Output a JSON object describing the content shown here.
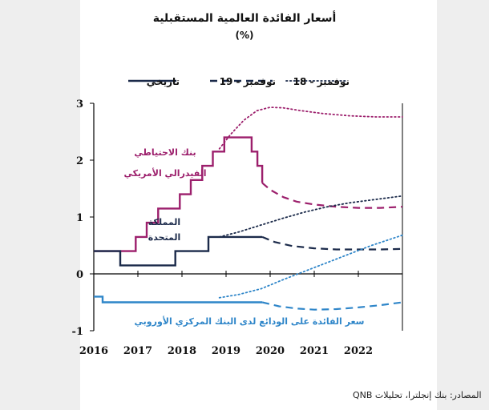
{
  "chart_data": {
    "type": "line",
    "title": "أسعار الفائدة العالمية المستقبلية",
    "subtitle": "(%)",
    "legend": {
      "placement": "top",
      "items": [
        {
          "label": "تاريخي",
          "style": "solid",
          "color": "#1b2a4a"
        },
        {
          "label": "نوفمبر - 19",
          "style": "dashed",
          "color": "#1b2a4a"
        },
        {
          "label": "نوفمبر - 18",
          "style": "dotted",
          "color": "#1b2a4a"
        }
      ]
    },
    "xlim": [
      2016,
      2023.0
    ],
    "ylim": [
      -1,
      3
    ],
    "x_ticks": [
      "2016",
      "2017",
      "2018",
      "2019",
      "2020",
      "2021",
      "2022"
    ],
    "y_ticks": [
      "3",
      "2",
      "1",
      "0",
      "-1"
    ],
    "grid": false,
    "source": "المصادر: بنك إنجلترا، تحليلات QNB",
    "colors": {
      "fed": "#9c1f6c",
      "uk": "#1b2a4a",
      "ecb": "#2f86c9"
    },
    "annotations": [
      {
        "id": "fed",
        "lines": [
          "بنك الاحتياطي",
          "الفيدرالي الأمريكي"
        ],
        "color": "#9c1f6c"
      },
      {
        "id": "uk",
        "lines": [
          "المملكة",
          "المتحدة"
        ],
        "color": "#1b2a4a"
      },
      {
        "id": "ecb",
        "lines": [
          "سعر الفائدة على الودائع لدى البنك المركزي الأوروبي"
        ],
        "color": "#2f86c9"
      }
    ],
    "series": [
      {
        "name": "بنك الاحتياطي الفيدرالي الأمريكي",
        "kind": "historical",
        "color": "#9c1f6c",
        "step": true,
        "x": [
          2016.0,
          2016.95,
          2017.2,
          2017.46,
          2017.95,
          2018.2,
          2018.46,
          2018.7,
          2018.96,
          2019.58,
          2019.71,
          2019.82
        ],
        "y": [
          0.4,
          0.65,
          0.9,
          1.15,
          1.4,
          1.65,
          1.9,
          2.15,
          2.4,
          2.15,
          1.9,
          1.6
        ]
      },
      {
        "name": "بنك الاحتياطي الفيدرالي الأمريكي",
        "kind": "forecast_nov19",
        "color": "#9c1f6c",
        "x": [
          2019.82,
          2020.0,
          2020.3,
          2020.6,
          2021.0,
          2021.5,
          2022.0,
          2022.5,
          2023.0
        ],
        "y": [
          1.6,
          1.48,
          1.35,
          1.27,
          1.22,
          1.18,
          1.16,
          1.16,
          1.18
        ]
      },
      {
        "name": "بنك الاحتياطي الفيدرالي الأمريكي",
        "kind": "forecast_nov18",
        "color": "#9c1f6c",
        "x": [
          2018.85,
          2019.1,
          2019.4,
          2019.7,
          2020.0,
          2020.3,
          2020.7,
          2021.2,
          2021.8,
          2022.4,
          2023.0
        ],
        "y": [
          2.2,
          2.45,
          2.7,
          2.87,
          2.93,
          2.92,
          2.87,
          2.82,
          2.78,
          2.76,
          2.76
        ]
      },
      {
        "name": "المملكة المتحدة",
        "kind": "historical",
        "color": "#1b2a4a",
        "step": true,
        "x": [
          2016.0,
          2016.6,
          2017.85,
          2018.6,
          2019.82
        ],
        "y": [
          0.4,
          0.15,
          0.4,
          0.65,
          0.65
        ]
      },
      {
        "name": "المملكة المتحدة",
        "kind": "forecast_nov19",
        "color": "#1b2a4a",
        "x": [
          2019.82,
          2020.1,
          2020.5,
          2021.0,
          2021.5,
          2022.0,
          2022.5,
          2023.0
        ],
        "y": [
          0.65,
          0.56,
          0.49,
          0.45,
          0.43,
          0.43,
          0.43,
          0.44
        ]
      },
      {
        "name": "المملكة المتحدة",
        "kind": "forecast_nov18",
        "color": "#1b2a4a",
        "x": [
          2018.85,
          2019.3,
          2019.8,
          2020.3,
          2020.8,
          2021.3,
          2021.8,
          2022.3,
          2023.0
        ],
        "y": [
          0.65,
          0.74,
          0.86,
          0.98,
          1.09,
          1.18,
          1.25,
          1.3,
          1.37
        ]
      },
      {
        "name": "سعر الفائدة على الودائع لدى البنك المركزي الأوروبي",
        "kind": "historical",
        "color": "#2f86c9",
        "step": true,
        "x": [
          2016.0,
          2016.2,
          2019.71,
          2019.82
        ],
        "y": [
          -0.4,
          -0.5,
          -0.5,
          -0.5
        ]
      },
      {
        "name": "سعر الفائدة على الودائع لدى البنك المركزي الأوروبي",
        "kind": "forecast_nov19",
        "color": "#2f86c9",
        "x": [
          2019.82,
          2020.2,
          2020.6,
          2021.0,
          2021.5,
          2022.0,
          2022.5,
          2023.0
        ],
        "y": [
          -0.5,
          -0.57,
          -0.61,
          -0.63,
          -0.62,
          -0.59,
          -0.55,
          -0.5
        ]
      },
      {
        "name": "سعر الفائدة على الودائع لدى البنك المركزي الأوروبي",
        "kind": "forecast_nov18",
        "color": "#2f86c9",
        "x": [
          2018.85,
          2019.3,
          2019.8,
          2020.3,
          2020.8,
          2021.3,
          2021.8,
          2022.3,
          2023.0
        ],
        "y": [
          -0.42,
          -0.36,
          -0.26,
          -0.1,
          0.05,
          0.2,
          0.35,
          0.5,
          0.68
        ]
      }
    ]
  }
}
